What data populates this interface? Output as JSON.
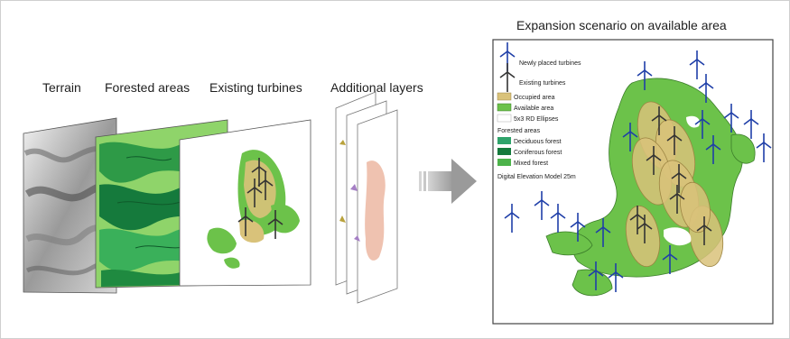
{
  "left_labels": {
    "terrain": "Terrain",
    "forested": "Forested areas",
    "existing": "Existing turbines",
    "additional": "Additional layers"
  },
  "right_title": "Expansion scenario on available area",
  "legend": {
    "newly_placed": "Newly placed turbines",
    "existing": "Existing turbines",
    "occupied": "Occupied area",
    "available": "Available area",
    "ellipses": "5x3 RD Ellipses",
    "forested_header": "Forested areas",
    "deciduous": "Deciduous forest",
    "coniferous": "Coniferous forest",
    "mixed": "Mixed forest",
    "dem": "Digital Elevation Model 25m"
  },
  "colors": {
    "occupied": "#d9c27a",
    "available": "#6cc24a",
    "deciduous": "#2fa36b",
    "coniferous": "#157a3c",
    "mixed": "#4cb34a",
    "new_turbine": "#1f3fa8",
    "existing_turbine": "#333333",
    "arrow": "#9a9a9a"
  },
  "icons": {
    "new_turbine": "wind-turbine-icon",
    "existing_turbine": "wind-turbine-icon",
    "arrow": "right-arrow-icon"
  }
}
